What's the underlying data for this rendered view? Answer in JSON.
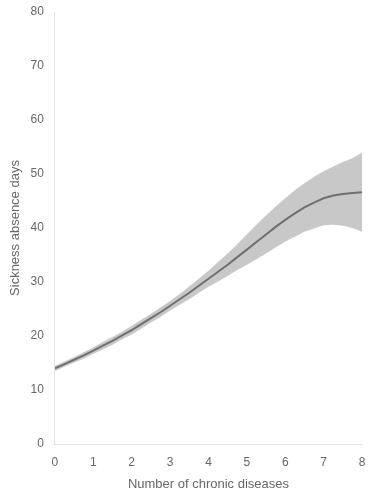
{
  "chart_data": {
    "type": "line",
    "xlabel": "Number of chronic diseases",
    "ylabel": "Sickness absence days",
    "x": [
      0,
      0.25,
      0.5,
      0.75,
      1,
      1.25,
      1.5,
      1.75,
      2,
      2.25,
      2.5,
      2.75,
      3,
      3.25,
      3.5,
      3.75,
      4,
      4.25,
      4.5,
      4.75,
      5,
      5.25,
      5.5,
      5.75,
      6,
      6.25,
      6.5,
      6.75,
      7,
      7.25,
      7.5,
      7.75,
      8
    ],
    "series": [
      {
        "type": "band",
        "color": "#aaaaaa",
        "lower": [
          13.5,
          14.3,
          15.1,
          15.8,
          16.7,
          17.5,
          18.4,
          19.4,
          20.3,
          21.4,
          22.5,
          23.5,
          24.7,
          25.8,
          26.8,
          28.0,
          29.1,
          30.1,
          31.1,
          32.2,
          33.2,
          34.2,
          35.3,
          36.4,
          37.5,
          38.4,
          39.3,
          39.9,
          40.5,
          40.6,
          40.4,
          40.0,
          39.3
        ],
        "upper": [
          14.5,
          15.3,
          16.1,
          17.0,
          17.9,
          18.9,
          19.8,
          20.8,
          21.9,
          23.0,
          24.1,
          25.3,
          26.5,
          27.8,
          29.2,
          30.6,
          32.1,
          33.7,
          35.3,
          37.0,
          38.8,
          40.6,
          42.3,
          44.0,
          45.5,
          47.0,
          48.3,
          49.5,
          50.5,
          51.4,
          52.2,
          52.9,
          54.0
        ]
      },
      {
        "type": "line",
        "color": "#000000",
        "values": [
          14.0,
          14.8,
          15.6,
          16.4,
          17.3,
          18.2,
          19.1,
          20.1,
          21.1,
          22.2,
          23.3,
          24.4,
          25.6,
          26.8,
          28.0,
          29.3,
          30.6,
          31.9,
          33.2,
          34.6,
          36.0,
          37.4,
          38.8,
          40.2,
          41.5,
          42.7,
          43.8,
          44.7,
          45.5,
          46.0,
          46.3,
          46.5,
          46.6
        ]
      }
    ],
    "xlim": [
      0,
      8
    ],
    "ylim": [
      0,
      80
    ],
    "xticks": [
      0,
      1,
      2,
      3,
      4,
      5,
      6,
      7,
      8
    ],
    "yticks": [
      0,
      10,
      20,
      30,
      40,
      50,
      60,
      70,
      80
    ],
    "grid": false
  }
}
